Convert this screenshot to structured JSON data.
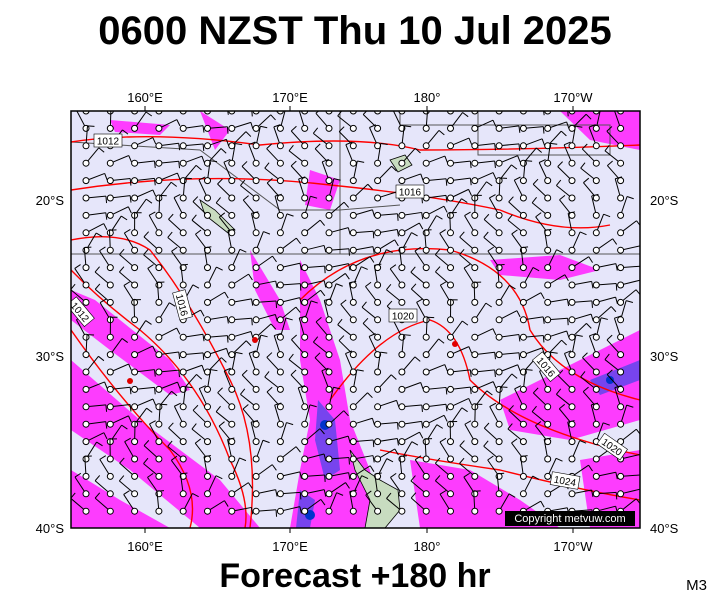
{
  "title": "0600 NZST Thu 10 Jul 2025",
  "map": {
    "longitude_labels_top": [
      "160°E",
      "170°E",
      "180°",
      "170°W"
    ],
    "longitude_labels_bottom": [
      "160°E",
      "170°E",
      "180°",
      "170°W"
    ],
    "latitude_labels_left": [
      "20°S",
      "30°S",
      "40°S"
    ],
    "latitude_labels_right": [
      "20°S",
      "30°S",
      "40°S"
    ],
    "isobar_labels": [
      "1012",
      "1016",
      "1016",
      "1020",
      "1016",
      "1020",
      "1024",
      "1012"
    ],
    "copyright": "Copyright metvuw.com"
  },
  "footer": {
    "forecast": "Forecast +180 hr",
    "model": "M3"
  }
}
